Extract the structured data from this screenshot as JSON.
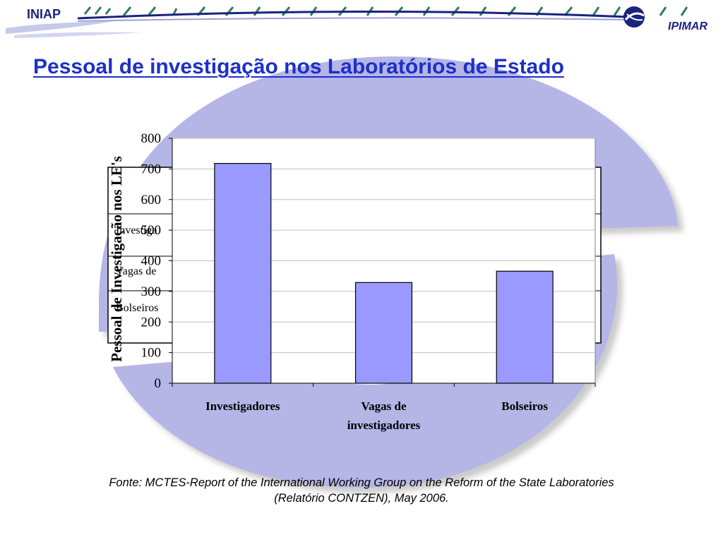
{
  "header": {
    "logo_left": "INIAP",
    "logo_right": "IPIMAR",
    "emblem_icon": "ipimar-emblem-icon"
  },
  "slide": {
    "title": "Pessoal de investigação nos Laboratórios de Estado",
    "source_line1": "Fonte: MCTES-Report of the International Working Group on the Reform of the State Laboratories",
    "source_line2": "(Relatório CONTZEN), May 2006."
  },
  "chart_data": {
    "type": "bar",
    "title": "",
    "xlabel": "",
    "ylabel": "Pessoal de Investigação nos LE's",
    "categories": [
      "Investigadores",
      "Vagas de investigadores",
      "Bolseiros"
    ],
    "category_lines": [
      [
        "Investigadores"
      ],
      [
        "Vagas de",
        "investigadores"
      ],
      [
        "Bolseiros"
      ]
    ],
    "values": [
      718,
      329,
      366
    ],
    "ylim": [
      0,
      800
    ],
    "yticks": [
      0,
      100,
      200,
      300,
      400,
      500,
      600,
      700,
      800
    ],
    "grid": true,
    "legend_fragments": [
      "Investiga",
      "Vagas de",
      "Bolseiros"
    ],
    "colors": {
      "bar_fill": "#9999ff",
      "bar_stroke": "#000000",
      "grid": "#c0c0c0",
      "title": "#1d2fc9",
      "background_shape": "#b5b5e6"
    }
  }
}
